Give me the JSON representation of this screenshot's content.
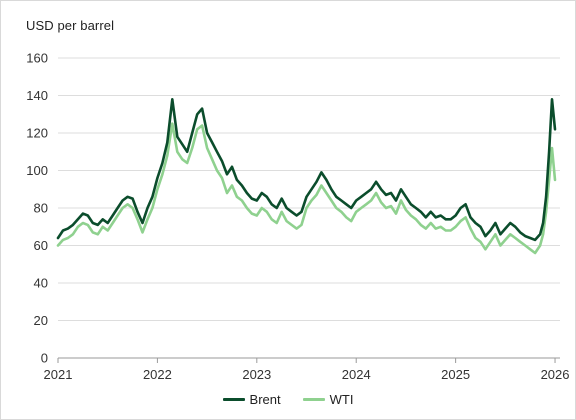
{
  "chart_data": {
    "type": "line",
    "title": "",
    "ylabel": "USD per barrel",
    "xlabel": "",
    "ylim": [
      0,
      160
    ],
    "xlim": [
      2021,
      2026.05
    ],
    "y_ticks": [
      "0",
      "20",
      "40",
      "60",
      "80",
      "100",
      "120",
      "140",
      "160"
    ],
    "x_ticks": [
      "2021",
      "2022",
      "2023",
      "2024",
      "2025",
      "2026"
    ],
    "grid": "horizontal",
    "legend_position": "bottom",
    "series": [
      {
        "name": "Brent",
        "color": "#0b4d2c",
        "x": [
          2021.0,
          2021.05,
          2021.1,
          2021.15,
          2021.2,
          2021.25,
          2021.3,
          2021.35,
          2021.4,
          2021.45,
          2021.5,
          2021.55,
          2021.6,
          2021.65,
          2021.7,
          2021.75,
          2021.8,
          2021.85,
          2021.9,
          2021.95,
          2022.0,
          2022.05,
          2022.1,
          2022.15,
          2022.2,
          2022.25,
          2022.3,
          2022.35,
          2022.4,
          2022.45,
          2022.5,
          2022.55,
          2022.6,
          2022.65,
          2022.7,
          2022.75,
          2022.8,
          2022.85,
          2022.9,
          2022.95,
          2023.0,
          2023.05,
          2023.1,
          2023.15,
          2023.2,
          2023.25,
          2023.3,
          2023.35,
          2023.4,
          2023.45,
          2023.5,
          2023.55,
          2023.6,
          2023.65,
          2023.7,
          2023.75,
          2023.8,
          2023.85,
          2023.9,
          2023.95,
          2024.0,
          2024.05,
          2024.1,
          2024.15,
          2024.2,
          2024.25,
          2024.3,
          2024.35,
          2024.4,
          2024.45,
          2024.5,
          2024.55,
          2024.6,
          2024.65,
          2024.7,
          2024.75,
          2024.8,
          2024.85,
          2024.9,
          2024.95,
          2025.0,
          2025.05,
          2025.1,
          2025.15,
          2025.2,
          2025.25,
          2025.3,
          2025.35,
          2025.4,
          2025.45,
          2025.5,
          2025.55,
          2025.6,
          2025.65,
          2025.7,
          2025.75,
          2025.8,
          2025.85,
          2025.88,
          2025.91,
          2025.94,
          2025.97,
          2026.0
        ],
        "values": [
          64,
          68,
          69,
          71,
          74,
          77,
          76,
          72,
          71,
          74,
          72,
          76,
          80,
          84,
          86,
          85,
          78,
          72,
          80,
          86,
          96,
          104,
          115,
          138,
          118,
          114,
          110,
          120,
          130,
          133,
          120,
          115,
          110,
          105,
          98,
          102,
          95,
          92,
          88,
          85,
          84,
          88,
          86,
          82,
          80,
          85,
          80,
          78,
          76,
          78,
          86,
          90,
          94,
          99,
          95,
          90,
          86,
          84,
          82,
          80,
          84,
          86,
          88,
          90,
          94,
          90,
          87,
          88,
          84,
          90,
          86,
          82,
          80,
          78,
          75,
          78,
          75,
          76,
          74,
          74,
          76,
          80,
          82,
          75,
          72,
          70,
          65,
          68,
          72,
          66,
          69,
          72,
          70,
          67,
          65,
          64,
          63,
          66,
          72,
          86,
          110,
          138,
          122
        ]
      },
      {
        "name": "WTI",
        "color": "#8fd18f",
        "x": [
          2021.0,
          2021.05,
          2021.1,
          2021.15,
          2021.2,
          2021.25,
          2021.3,
          2021.35,
          2021.4,
          2021.45,
          2021.5,
          2021.55,
          2021.6,
          2021.65,
          2021.7,
          2021.75,
          2021.8,
          2021.85,
          2021.9,
          2021.95,
          2022.0,
          2022.05,
          2022.1,
          2022.15,
          2022.2,
          2022.25,
          2022.3,
          2022.35,
          2022.4,
          2022.45,
          2022.5,
          2022.55,
          2022.6,
          2022.65,
          2022.7,
          2022.75,
          2022.8,
          2022.85,
          2022.9,
          2022.95,
          2023.0,
          2023.05,
          2023.1,
          2023.15,
          2023.2,
          2023.25,
          2023.3,
          2023.35,
          2023.4,
          2023.45,
          2023.5,
          2023.55,
          2023.6,
          2023.65,
          2023.7,
          2023.75,
          2023.8,
          2023.85,
          2023.9,
          2023.95,
          2024.0,
          2024.05,
          2024.1,
          2024.15,
          2024.2,
          2024.25,
          2024.3,
          2024.35,
          2024.4,
          2024.45,
          2024.5,
          2024.55,
          2024.6,
          2024.65,
          2024.7,
          2024.75,
          2024.8,
          2024.85,
          2024.9,
          2024.95,
          2025.0,
          2025.05,
          2025.1,
          2025.15,
          2025.2,
          2025.25,
          2025.3,
          2025.35,
          2025.4,
          2025.45,
          2025.5,
          2025.55,
          2025.6,
          2025.65,
          2025.7,
          2025.75,
          2025.8,
          2025.85,
          2025.88,
          2025.91,
          2025.94,
          2025.97,
          2026.0
        ],
        "values": [
          60,
          63,
          64,
          66,
          70,
          72,
          71,
          67,
          66,
          70,
          68,
          72,
          76,
          80,
          82,
          80,
          74,
          67,
          74,
          80,
          90,
          98,
          108,
          125,
          110,
          106,
          104,
          112,
          122,
          124,
          112,
          106,
          100,
          96,
          88,
          92,
          86,
          84,
          80,
          77,
          76,
          80,
          78,
          74,
          72,
          78,
          73,
          71,
          69,
          71,
          80,
          84,
          87,
          92,
          88,
          84,
          80,
          78,
          75,
          73,
          78,
          80,
          82,
          84,
          88,
          83,
          80,
          81,
          77,
          84,
          79,
          76,
          74,
          71,
          69,
          72,
          69,
          70,
          68,
          68,
          70,
          73,
          75,
          69,
          64,
          62,
          58,
          62,
          66,
          60,
          63,
          66,
          64,
          62,
          60,
          58,
          56,
          60,
          66,
          78,
          95,
          112,
          95
        ]
      }
    ]
  }
}
